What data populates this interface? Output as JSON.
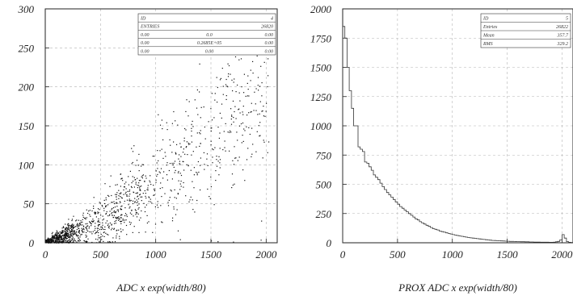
{
  "chart_data": [
    {
      "type": "scatter",
      "xlabel": "ADC x exp(width/80)",
      "ylabel": "",
      "xlim": [
        0,
        2100
      ],
      "ylim": [
        0,
        300
      ],
      "xticks": [
        "0",
        "500",
        "1000",
        "1500",
        "2000"
      ],
      "yticks": [
        "0",
        "50",
        "100",
        "150",
        "200",
        "250",
        "300"
      ],
      "grid": true,
      "stats_box": {
        "placement": "top-right",
        "rows": [
          [
            "ID",
            "",
            "4"
          ],
          [
            "ENTRIES",
            "",
            "26820"
          ],
          [
            "0.00",
            "0.0",
            "0.00"
          ],
          [
            "0.00",
            "0.2685E+05",
            "0.00"
          ],
          [
            "0.00",
            "0.00",
            "0.00"
          ]
        ]
      },
      "points_summary": {
        "count_drawn": 1400,
        "trend": "positive, curving up; dense near origin, spreading with x",
        "band_center_at_x": [
          [
            0,
            1
          ],
          [
            500,
            28
          ],
          [
            1000,
            78
          ],
          [
            1500,
            135
          ],
          [
            1900,
            185
          ]
        ]
      }
    },
    {
      "type": "bar",
      "style": "histogram-step",
      "xlabel": "PROX ADC x exp(width/80)",
      "ylabel": "",
      "xlim": [
        0,
        2100
      ],
      "ylim": [
        0,
        2000
      ],
      "xticks": [
        "0",
        "500",
        "1000",
        "1500",
        "2000"
      ],
      "yticks": [
        "0",
        "250",
        "500",
        "750",
        "1000",
        "1250",
        "1500",
        "1750",
        "2000"
      ],
      "grid": true,
      "stats_box": {
        "placement": "top-right",
        "rows": [
          [
            "ID",
            "5"
          ],
          [
            "Entries",
            "26822"
          ],
          [
            "Mean",
            "357.7"
          ],
          [
            "RMS",
            "329.2"
          ]
        ]
      },
      "bins": {
        "width": 20,
        "x": [
          0,
          20,
          40,
          60,
          80,
          100,
          120,
          140,
          160,
          180,
          200,
          220,
          240,
          260,
          280,
          300,
          320,
          340,
          360,
          380,
          400,
          420,
          440,
          460,
          480,
          500,
          520,
          540,
          560,
          580,
          600,
          620,
          640,
          660,
          680,
          700,
          720,
          740,
          760,
          780,
          800,
          820,
          840,
          860,
          880,
          900,
          920,
          940,
          960,
          980,
          1000,
          1020,
          1040,
          1060,
          1080,
          1100,
          1120,
          1140,
          1160,
          1180,
          1200,
          1220,
          1240,
          1260,
          1280,
          1300,
          1320,
          1340,
          1360,
          1380,
          1400,
          1420,
          1440,
          1460,
          1480,
          1500,
          1520,
          1540,
          1560,
          1580,
          1600,
          1620,
          1640,
          1660,
          1680,
          1700,
          1720,
          1740,
          1760,
          1780,
          1800,
          1820,
          1840,
          1860,
          1880,
          1900,
          1920,
          1940,
          1960,
          1980,
          2000,
          2020,
          2040,
          2060,
          2080
        ],
        "counts": [
          1850,
          1750,
          1500,
          1300,
          1150,
          1000,
          1000,
          820,
          800,
          780,
          690,
          680,
          650,
          620,
          580,
          560,
          540,
          510,
          480,
          455,
          430,
          410,
          390,
          370,
          350,
          330,
          310,
          295,
          280,
          265,
          250,
          235,
          220,
          205,
          195,
          180,
          170,
          160,
          150,
          140,
          130,
          120,
          115,
          110,
          100,
          95,
          90,
          85,
          80,
          75,
          70,
          66,
          62,
          58,
          55,
          52,
          48,
          45,
          42,
          40,
          38,
          35,
          33,
          30,
          28,
          26,
          24,
          22,
          20,
          19,
          18,
          17,
          16,
          15,
          14,
          13,
          12,
          12,
          11,
          10,
          10,
          9,
          9,
          8,
          8,
          7,
          7,
          6,
          6,
          6,
          5,
          5,
          5,
          5,
          4,
          4,
          5,
          8,
          12,
          25,
          70,
          40,
          10,
          4,
          3
        ]
      }
    }
  ]
}
